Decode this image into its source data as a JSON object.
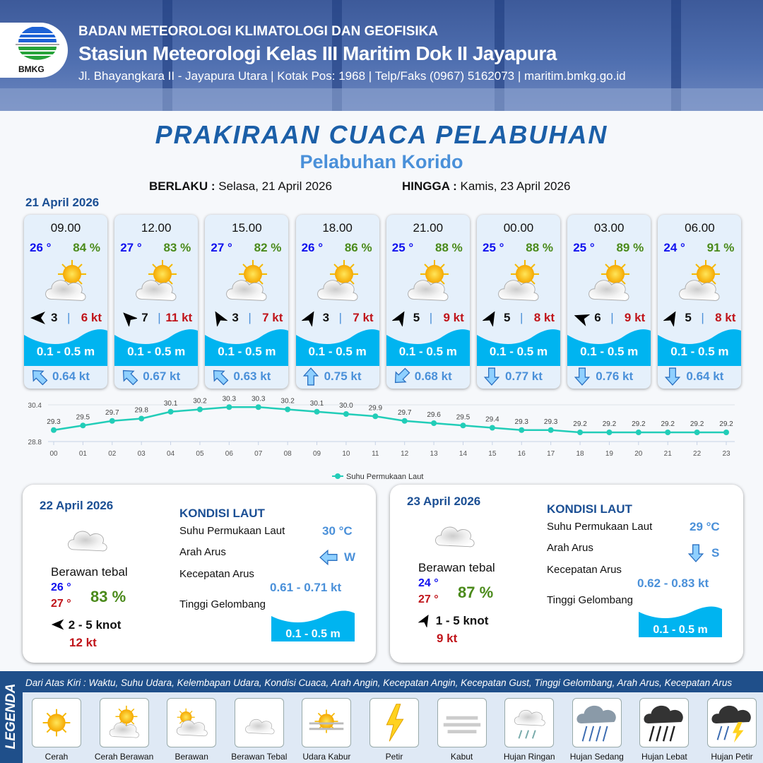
{
  "header": {
    "org": "BADAN METEOROLOGI KLIMATOLOGI DAN GEOFISIKA",
    "station": "Stasiun Meteorologi Kelas III Maritim Dok II Jayapura",
    "address": "Jl. Bhayangkara II - Jayapura Utara | Kotak Pos: 1968 | Telp/Faks (0967) 5162073 | maritim.bmkg.go.id",
    "logo_text": "BMKG"
  },
  "title": "PRAKIRAAN CUACA PELABUHAN",
  "subtitle": "Pelabuhan Korido",
  "validity": {
    "from_label": "BERLAKU :",
    "from": "Selasa, 21 April 2026",
    "to_label": "HINGGA :",
    "to": "Kamis, 23 April 2026"
  },
  "day1_date": "21 April 2026",
  "forecasts": [
    {
      "time": "09.00",
      "temp": "26 °",
      "hum": "84 %",
      "weather": "Cerah Berawan",
      "wind_deg": 270,
      "wind": "3",
      "gust": "6 kt",
      "wave": "0.1 - 0.5 m",
      "cur_deg": 315,
      "cur": "0.64 kt"
    },
    {
      "time": "12.00",
      "temp": "27 °",
      "hum": "83 %",
      "weather": "Cerah Berawan",
      "wind_deg": 315,
      "wind": "7",
      "gust": "11 kt",
      "wave": "0.1 - 0.5 m",
      "cur_deg": 315,
      "cur": "0.67 kt"
    },
    {
      "time": "15.00",
      "temp": "27 °",
      "hum": "82 %",
      "weather": "Cerah Berawan",
      "wind_deg": 330,
      "wind": "3",
      "gust": "7 kt",
      "wave": "0.1 - 0.5 m",
      "cur_deg": 315,
      "cur": "0.63 kt"
    },
    {
      "time": "18.00",
      "temp": "26 °",
      "hum": "86 %",
      "weather": "Cerah Berawan",
      "wind_deg": 30,
      "wind": "3",
      "gust": "7 kt",
      "wave": "0.1 - 0.5 m",
      "cur_deg": 0,
      "cur": "0.75 kt"
    },
    {
      "time": "21.00",
      "temp": "25 °",
      "hum": "88 %",
      "weather": "Cerah Berawan",
      "wind_deg": 30,
      "wind": "5",
      "gust": "9 kt",
      "wave": "0.1 - 0.5 m",
      "cur_deg": 225,
      "cur": "0.68 kt"
    },
    {
      "time": "00.00",
      "temp": "25 °",
      "hum": "88 %",
      "weather": "Cerah Berawan",
      "wind_deg": 30,
      "wind": "5",
      "gust": "8 kt",
      "wave": "0.1 - 0.5 m",
      "cur_deg": 180,
      "cur": "0.77 kt"
    },
    {
      "time": "03.00",
      "temp": "25 °",
      "hum": "89 %",
      "weather": "Cerah Berawan",
      "wind_deg": 290,
      "wind": "6",
      "gust": "9 kt",
      "wave": "0.1 - 0.5 m",
      "cur_deg": 180,
      "cur": "0.76 kt"
    },
    {
      "time": "06.00",
      "temp": "24 °",
      "hum": "91 %",
      "weather": "Cerah Berawan",
      "wind_deg": 30,
      "wind": "5",
      "gust": "8 kt",
      "wave": "0.1 - 0.5 m",
      "cur_deg": 180,
      "cur": "0.64 kt"
    }
  ],
  "chart_data": {
    "type": "line",
    "categories": [
      "00",
      "01",
      "02",
      "03",
      "04",
      "05",
      "06",
      "07",
      "08",
      "09",
      "10",
      "11",
      "12",
      "13",
      "14",
      "15",
      "16",
      "17",
      "18",
      "19",
      "20",
      "21",
      "22",
      "23"
    ],
    "series": [
      {
        "name": "Suhu Permukaan Laut",
        "values": [
          29.3,
          29.5,
          29.7,
          29.8,
          30.1,
          30.2,
          30.3,
          30.3,
          30.2,
          30.1,
          30.0,
          29.9,
          29.7,
          29.6,
          29.5,
          29.4,
          29.3,
          29.3,
          29.2,
          29.2,
          29.2,
          29.2,
          29.2,
          29.2
        ],
        "labels": [
          "29.3",
          "29.5",
          "29.7",
          "29.8",
          "30.1",
          "30.2",
          "30.3",
          "30.3",
          "30.2",
          "30.1",
          "30.0",
          "29.9",
          "29.7",
          "29.6",
          "29.5",
          "29.4",
          "29.3",
          "29.3",
          "29.2",
          "29.2",
          "29.2",
          "29.2",
          "29.2",
          "29.2"
        ]
      }
    ],
    "yticks": [
      "28.8",
      "30.4"
    ],
    "ylim": [
      28.8,
      30.4
    ],
    "legend": "bottom",
    "grid": true,
    "color": "#22cdb8"
  },
  "days": [
    {
      "date": "22 April 2026",
      "weather": "Berawan tebal",
      "tmin": "26 °",
      "tmax": "27 °",
      "hum": "83 %",
      "wind_deg": 270,
      "wind": "2  - 5 knot",
      "gust": "12 kt",
      "kondisi": "KONDISI LAUT",
      "sst_label": "Suhu Permukaan Laut",
      "sst": "30 °C",
      "dir_label": "Arah Arus",
      "dir": "W",
      "cur_deg": 270,
      "spd_label": "Kecepatan Arus",
      "spd": "0.61 -  0.71 kt",
      "wave_label": "Tinggi Gelombang",
      "wave": "0.1 - 0.5 m"
    },
    {
      "date": "23 April 2026",
      "weather": "Berawan tebal",
      "tmin": "24 °",
      "tmax": "27 °",
      "hum": "87 %",
      "wind_deg": 30,
      "wind": "1  - 5 knot",
      "gust": "9 kt",
      "kondisi": "KONDISI LAUT",
      "sst_label": "Suhu Permukaan Laut",
      "sst": "29 °C",
      "dir_label": "Arah Arus",
      "dir": "S",
      "cur_deg": 180,
      "spd_label": "Kecepatan Arus",
      "spd": "0.62  - 0.83 kt",
      "wave_label": "Tinggi Gelombang",
      "wave": "0.1 - 0.5 m"
    }
  ],
  "legend": {
    "title": "LEGENDA",
    "desc": "Dari Atas Kiri : Waktu, Suhu Udara, Kelembapan Udara, Kondisi Cuaca, Arah Angin, Kecepatan Angin, Kecepatan Gust, Tinggi Gelombang, Arah Arus, Kecepatan Arus",
    "items": [
      "Cerah",
      "Cerah Berawan",
      "Berawan",
      "Berawan Tebal",
      "Udara Kabur",
      "Petir",
      "Kabut",
      "Hujan Ringan",
      "Hujan Sedang",
      "Hujan Lebat",
      "Hujan Petir"
    ]
  },
  "colors": {
    "title": "#1b5fa8",
    "temp": "#1010ee",
    "hum": "#4a8a1a",
    "gust": "#c0141a",
    "wave": "#00b4f0",
    "current": "#4a90d9"
  }
}
